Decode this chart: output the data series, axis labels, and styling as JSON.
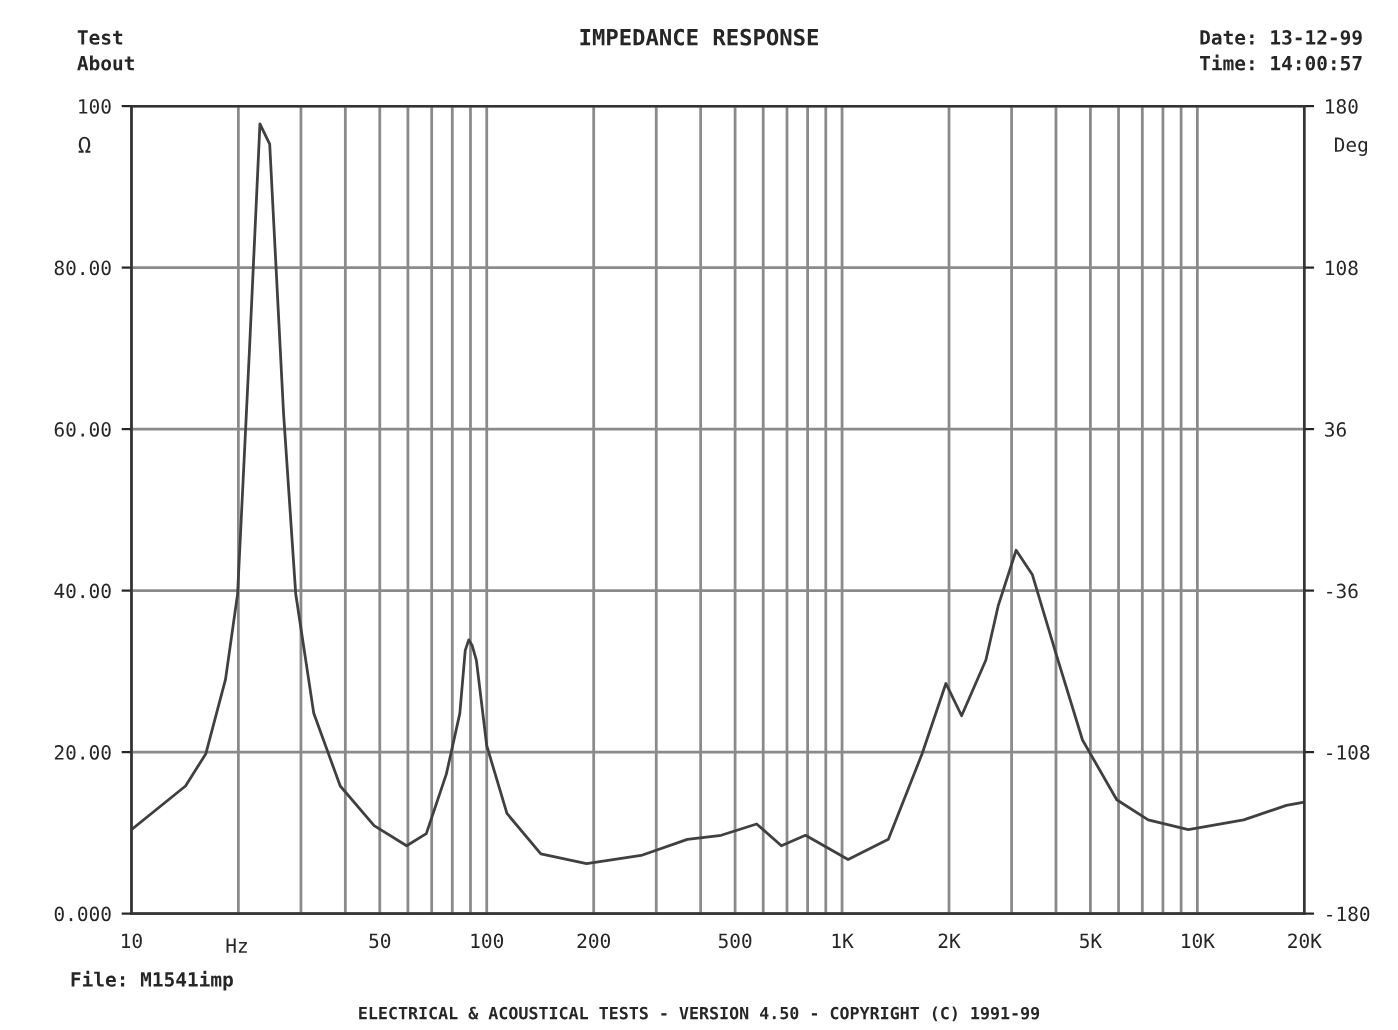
{
  "chart_data": {
    "type": "line",
    "title": "IMPEDANCE RESPONSE",
    "xlabel": "Hz",
    "ylabel": "Ω",
    "y2label": "Deg",
    "annotations": [
      "Test",
      "About",
      "Date: 13-12-99",
      "Time: 14:00:57",
      "File: M1541imp",
      "ELECTRICAL & ACOUSTICAL TESTS - VERSION 4.50 - COPYRIGHT (C) 1991-99"
    ],
    "log": "x",
    "grid": true,
    "legend": false,
    "marker": "none",
    "line_style": "solid",
    "xlim": [
      10,
      20000
    ],
    "xticks": [
      10,
      {
        "value": 20,
        "label": null
      },
      {
        "value": 30,
        "label": null
      },
      {
        "value": 40,
        "label": null
      },
      50,
      {
        "value": 60,
        "label": null
      },
      {
        "value": 70,
        "label": null
      },
      {
        "value": 80,
        "label": null
      },
      {
        "value": 90,
        "label": null
      },
      100,
      200,
      {
        "value": 300,
        "label": null
      },
      {
        "value": 400,
        "label": null
      },
      500,
      {
        "value": 600,
        "label": null
      },
      {
        "value": 700,
        "label": null
      },
      {
        "value": 800,
        "label": null
      },
      {
        "value": 900,
        "label": null
      },
      {
        "value": 1000,
        "label": "1K"
      },
      {
        "value": 2000,
        "label": "2K"
      },
      {
        "value": 3000,
        "label": null
      },
      {
        "value": 4000,
        "label": null
      },
      {
        "value": 5000,
        "label": "5K"
      },
      {
        "value": 6000,
        "label": null
      },
      {
        "value": 7000,
        "label": null
      },
      {
        "value": 8000,
        "label": null
      },
      {
        "value": 9000,
        "label": null
      },
      {
        "value": 10000,
        "label": "10K"
      },
      {
        "value": 20000,
        "label": "20K"
      }
    ],
    "ylim": [
      0,
      100
    ],
    "yticks": [
      {
        "value": 0,
        "label": "0.000"
      },
      {
        "value": 20,
        "label": "20.00"
      },
      {
        "value": 40,
        "label": "40.00"
      },
      {
        "value": 60,
        "label": "60.00"
      },
      {
        "value": 80,
        "label": "80.00"
      },
      100
    ],
    "y2lim": [
      -180,
      180
    ],
    "y2ticks": [
      -180,
      -108,
      -36,
      36,
      108,
      180
    ],
    "series": [
      {
        "color": "#404040",
        "x": [
          10,
          14.2,
          16.2,
          18.4,
          19.9,
          21.5,
          23,
          24.5,
          26.8,
          29,
          32.6,
          38.7,
          48.2,
          59.5,
          67.6,
          77,
          84,
          87,
          89,
          91,
          93.5,
          100,
          114,
          142,
          191,
          272,
          367,
          457,
          575,
          675,
          789,
          1040,
          1350,
          1680,
          1960,
          2170,
          2540,
          2750,
          3090,
          3430,
          4000,
          4750,
          5930,
          7270,
          9430,
          13500,
          17800,
          20000
        ],
        "values": [
          10.4,
          15.8,
          19.8,
          29,
          39.6,
          70,
          97.8,
          95.3,
          62,
          39.6,
          24.8,
          15.8,
          10.9,
          8.4,
          9.9,
          17.3,
          24.8,
          32.6,
          33.9,
          33.2,
          31.4,
          20.8,
          12.4,
          7.4,
          6.2,
          7.2,
          9.2,
          9.7,
          11.1,
          8.4,
          9.7,
          6.7,
          9.2,
          19.8,
          28.5,
          24.5,
          31.4,
          38.1,
          45,
          42,
          32.2,
          21.5,
          14.1,
          11.6,
          10.4,
          11.6,
          13.4,
          13.8
        ]
      }
    ]
  }
}
